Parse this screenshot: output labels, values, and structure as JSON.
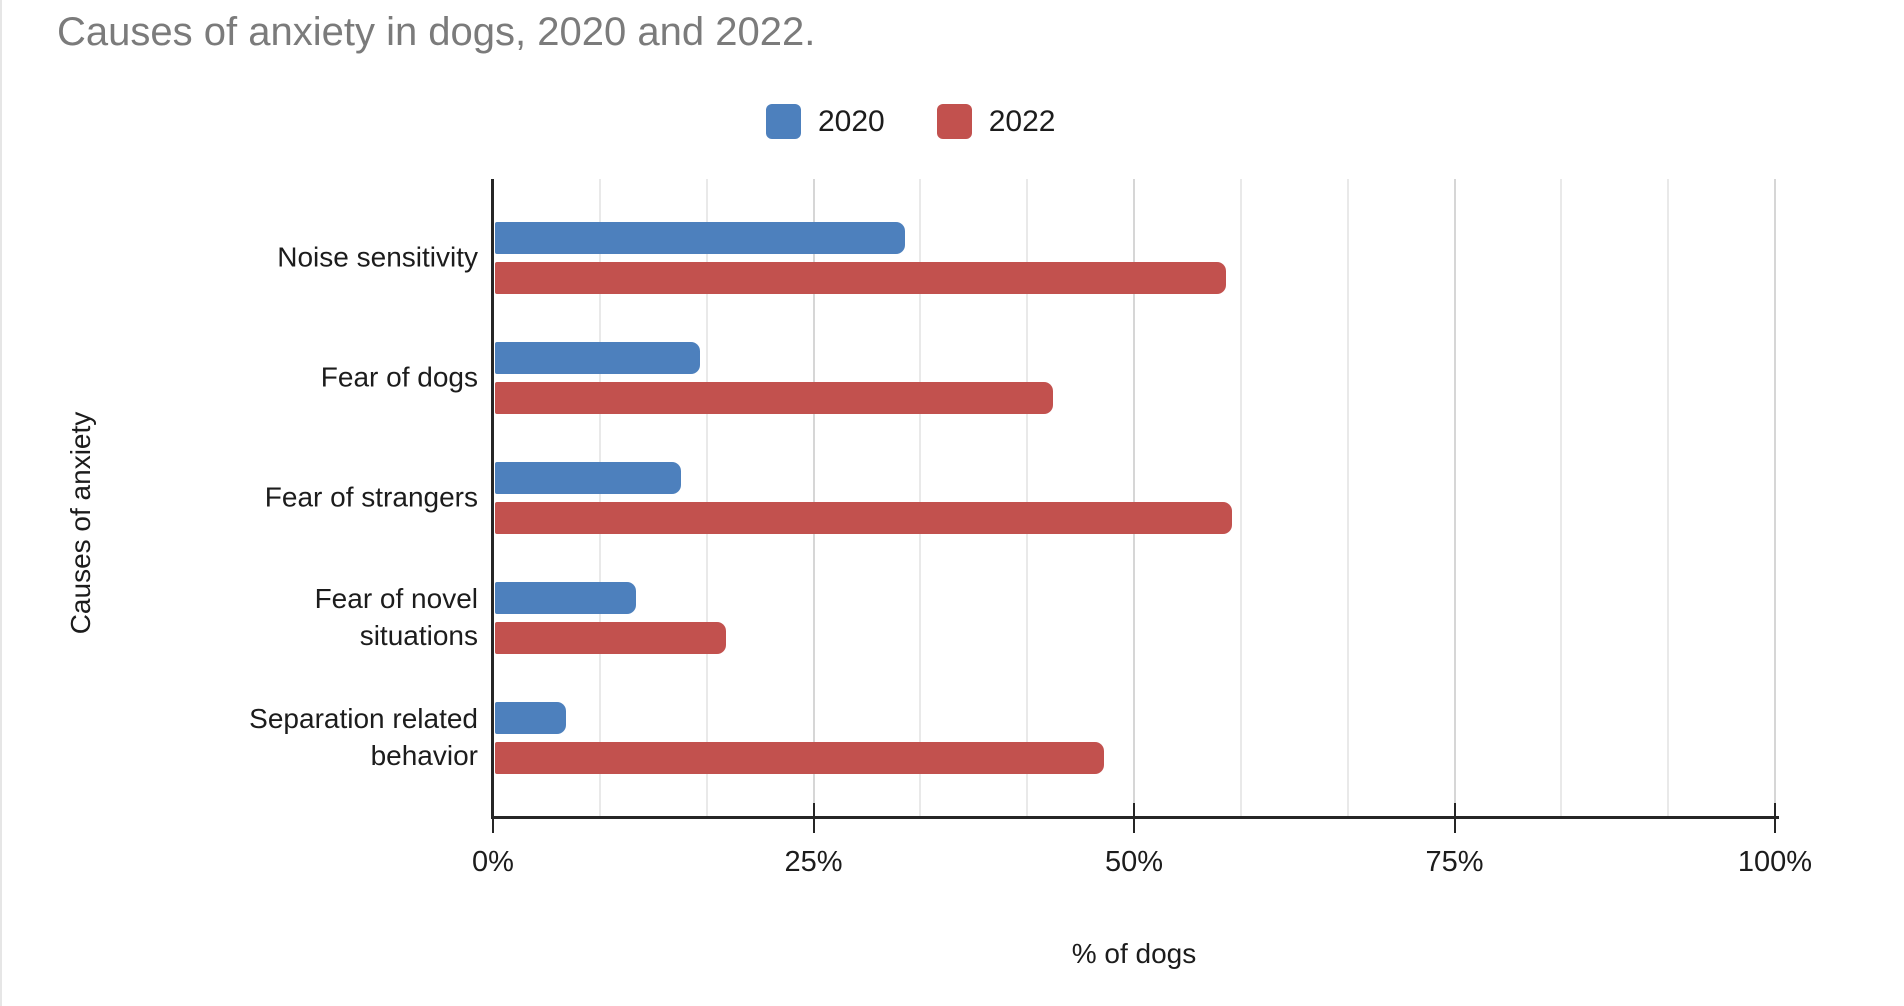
{
  "title": "Causes of anxiety in dogs, 2020 and 2022.",
  "legend": [
    {
      "label": "2020",
      "color": "#4d80bd"
    },
    {
      "label": "2022",
      "color": "#c2514e"
    }
  ],
  "colors": {
    "series_2020": "#4d80bd",
    "series_2022": "#c2514e",
    "title_text": "#7b7b7b",
    "axis": "#262626",
    "grid_minor": "#e9e9e9",
    "grid_major": "#d6d6d6"
  },
  "chart_data": {
    "type": "bar",
    "orientation": "horizontal",
    "title": "Causes of anxiety in dogs, 2020 and 2022.",
    "xlabel": "% of dogs",
    "ylabel": "Causes of anxiety",
    "xlim": [
      0,
      100
    ],
    "x_ticks": [
      "0%",
      "25%",
      "50%",
      "75%",
      "100%"
    ],
    "x_tick_values": [
      0,
      25,
      50,
      75,
      100
    ],
    "grid": "vertical gridlines, minor interval 8.33%, major at 25% steps",
    "legend_position": "top-center",
    "categories": [
      "Noise sensitivity",
      "Fear of dogs",
      "Fear of strangers",
      "Fear of novel situations",
      "Separation related behavior"
    ],
    "category_label_lines": [
      [
        "Noise sensitivity"
      ],
      [
        "Fear of dogs"
      ],
      [
        "Fear of strangers"
      ],
      [
        "Fear of novel",
        "situations"
      ],
      [
        "Separation related",
        "behavior"
      ]
    ],
    "series": [
      {
        "name": "2020",
        "color": "#4d80bd",
        "values": [
          32,
          16,
          14.5,
          11,
          5.5
        ]
      },
      {
        "name": "2022",
        "color": "#c2514e",
        "values": [
          57,
          43.5,
          57.5,
          18,
          47.5
        ]
      }
    ]
  }
}
